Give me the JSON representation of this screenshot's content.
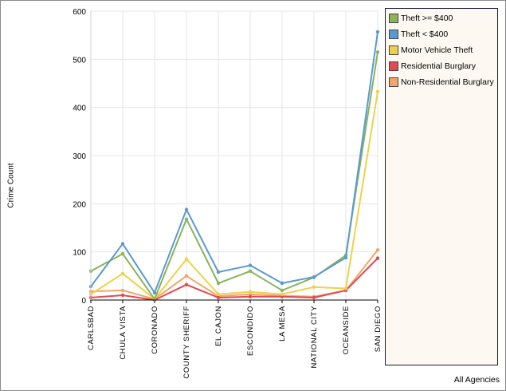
{
  "chart_data": {
    "type": "line",
    "ylabel": "Crime Count",
    "xlabel": "",
    "footer": "All Agencies",
    "ylim": [
      0,
      600
    ],
    "yticks": [
      "0",
      "100",
      "200",
      "300",
      "400",
      "500",
      "600"
    ],
    "grid": true,
    "legend_position": "right",
    "categories": [
      "CARLSBAD",
      "CHULA VISTA",
      "CORONADO",
      "COUNTY SHERIFF",
      "EL CAJON",
      "ESCONDIDO",
      "LA MESA",
      "NATIONAL CITY",
      "OCEANSIDE",
      "SAN DIEGO"
    ],
    "series": [
      {
        "name": "Theft >= $400",
        "color": "#8ab35a",
        "values": [
          60,
          96,
          2,
          168,
          35,
          60,
          20,
          47,
          93,
          515
        ]
      },
      {
        "name": "Theft < $400",
        "color": "#5a9ad0",
        "values": [
          28,
          117,
          15,
          188,
          58,
          72,
          35,
          48,
          88,
          557
        ]
      },
      {
        "name": "Motor Vehicle Theft",
        "color": "#ecd24a",
        "values": [
          12,
          55,
          2,
          85,
          12,
          17,
          12,
          27,
          24,
          433
        ]
      },
      {
        "name": "Residential Burglary",
        "color": "#e04a55",
        "values": [
          5,
          10,
          0,
          32,
          5,
          7,
          7,
          5,
          20,
          87
        ]
      },
      {
        "name": "Non-Residential Burglary",
        "color": "#f2a56a",
        "values": [
          18,
          20,
          2,
          50,
          8,
          12,
          9,
          7,
          20,
          104
        ]
      }
    ]
  }
}
